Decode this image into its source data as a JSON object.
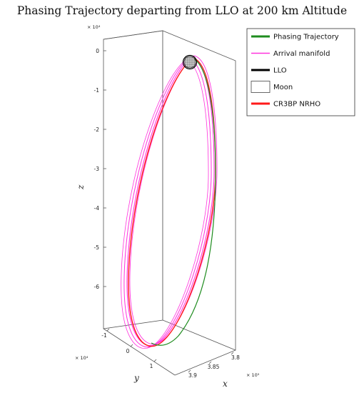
{
  "chart_data": {
    "type": "line",
    "title": "Phasing Trajectory departing from LLO at 200 km Altitude",
    "xlabel": "x",
    "ylabel": "y",
    "zlabel": "z",
    "x_exponent": "× 10⁵",
    "y_exponent": "× 10⁴",
    "z_exponent": "× 10⁴",
    "x_ticks": [
      "3.8",
      "3.85",
      "3.9"
    ],
    "y_ticks": [
      "-1",
      "0",
      "1"
    ],
    "z_ticks": [
      "0",
      "-1",
      "-2",
      "-3",
      "-4",
      "-5",
      "-6"
    ],
    "z_range": [
      -6.5,
      0.3
    ],
    "legend_position": "top-right",
    "series": [
      {
        "name": "Phasing Trajectory",
        "color": "#1e8c1e",
        "style": "line",
        "z": [
          -0.1,
          -1.2,
          -3.0,
          -5.0,
          -6.9,
          -7.5
        ]
      },
      {
        "name": "Arrival manifold",
        "color": "#ff33dd",
        "style": "line"
      },
      {
        "name": "LLO",
        "color": "#000000",
        "style": "line"
      },
      {
        "name": "Moon",
        "color": "#cccccc",
        "style": "patch"
      },
      {
        "name": "CR3BP NRHO",
        "color": "#ff1a1a",
        "style": "line"
      }
    ]
  },
  "colors": {
    "accent_green": "#1e8c1e",
    "accent_magenta": "#ff33dd",
    "accent_red": "#ff1a1a"
  }
}
